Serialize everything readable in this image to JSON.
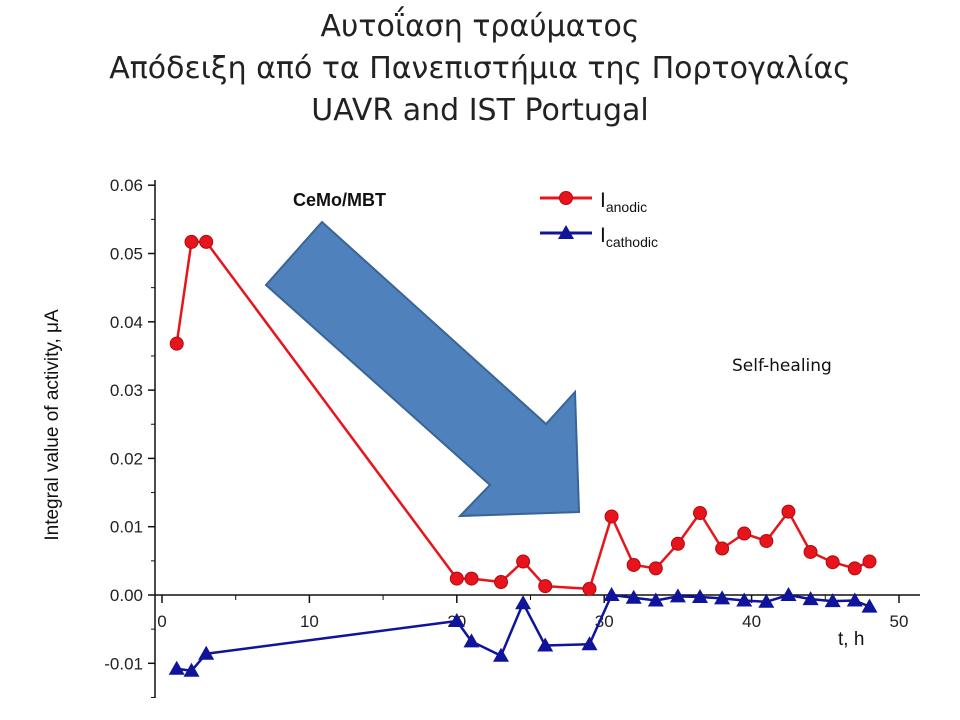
{
  "slide": {
    "title_lines": [
      "Αυτοΐαση τραύματος",
      "Απόδειξη από τα Πανεπιστήμια της Πορτογαλίας",
      "UAVR and IST Portugal"
    ]
  },
  "chart_data": {
    "type": "line",
    "title": "",
    "xlabel": "t, h",
    "ylabel": "Integral value of activity, μA",
    "xlim": [
      0,
      51
    ],
    "ylim": [
      -0.015,
      0.06
    ],
    "x_ticks": [
      0,
      10,
      20,
      30,
      40,
      50
    ],
    "y_ticks": [
      -0.01,
      0.0,
      0.01,
      0.02,
      0.03,
      0.04,
      0.05,
      0.06
    ],
    "x_tick_labels": [
      "0",
      "10",
      "20",
      "30",
      "40",
      "50"
    ],
    "y_tick_labels": [
      "-0.01",
      "0.00",
      "0.01",
      "0.02",
      "0.03",
      "0.04",
      "0.05",
      "0.06"
    ],
    "grid": false,
    "legend_position": "top-center",
    "series": [
      {
        "name": "I",
        "name_subscript": "anodic",
        "color": "#e8141b",
        "marker": "circle",
        "x": [
          1,
          2,
          3,
          20,
          21,
          23,
          24.5,
          26,
          29,
          30.5,
          32,
          33.5,
          35,
          36.5,
          38,
          39.5,
          41,
          42.5,
          44,
          45.5,
          47,
          48
        ],
        "y": [
          0.0368,
          0.0517,
          0.0517,
          0.0024,
          0.0024,
          0.0019,
          0.0049,
          0.0013,
          0.0009,
          0.0115,
          0.0044,
          0.0039,
          0.0075,
          0.012,
          0.0068,
          0.009,
          0.0079,
          0.0122,
          0.0063,
          0.0048,
          0.0039,
          0.0049
        ]
      },
      {
        "name": "I",
        "name_subscript": "cathodic",
        "color": "#0f149a",
        "marker": "triangle",
        "x": [
          1,
          2,
          3,
          20,
          21,
          23,
          24.5,
          26,
          29,
          30.5,
          32,
          33.5,
          35,
          36.5,
          38,
          39.5,
          41,
          42.5,
          44,
          45.5,
          47,
          48
        ],
        "y": [
          -0.0108,
          -0.0111,
          -0.0086,
          -0.0038,
          -0.0068,
          -0.0089,
          -0.0012,
          -0.0074,
          -0.0072,
          0.0,
          -0.0004,
          -0.0008,
          -0.0002,
          -0.0003,
          -0.0005,
          -0.0008,
          -0.001,
          0.0,
          -0.0006,
          -0.0009,
          -0.0008,
          -0.0017
        ]
      }
    ],
    "annotations": [
      {
        "text": "CeMo/MBT",
        "type": "arrow-label"
      },
      {
        "text": "Self-healing",
        "type": "note"
      }
    ]
  }
}
